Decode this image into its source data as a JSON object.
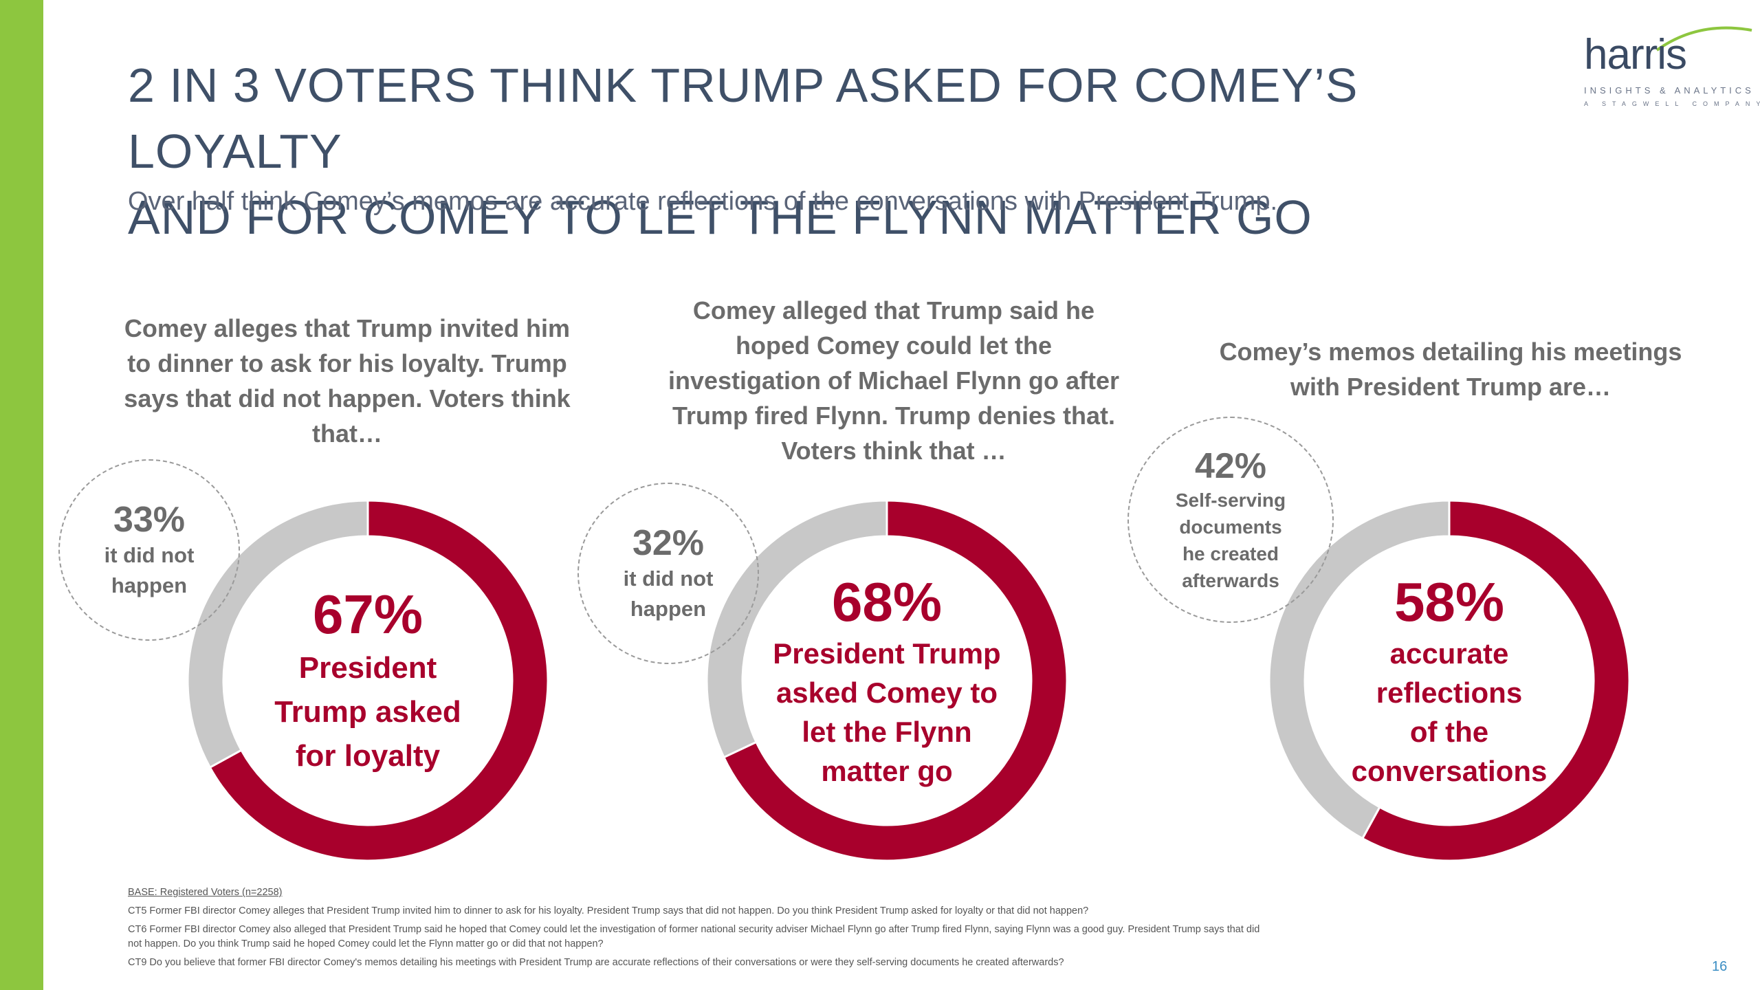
{
  "title_line1": "2 IN 3 VOTERS THINK TRUMP ASKED FOR COMEY’S LOYALTY",
  "title_line2": "AND FOR COMEY TO LET THE FLYNN MATTER GO",
  "subtitle": "Over half think Comey’s memos are accurate reflections of the conversations with President Trump.",
  "logo": {
    "word": "harris",
    "tagline": "INSIGHTS & ANALYTICS",
    "company": "A STAGWELL COMPANY"
  },
  "colors": {
    "accent": "#a8002c",
    "remainder": "#c8c8c8",
    "sidebar": "#8dc63f",
    "title": "#3f5068"
  },
  "chart_data": [
    {
      "type": "pie",
      "title": "Comey alleges that Trump invited him to dinner to ask for his loyalty. Trump says that did not happen. Voters think that…",
      "slices": [
        {
          "label": "President Trump asked for loyalty",
          "value": 67,
          "display": "67%"
        },
        {
          "label": "it did not happen",
          "value": 33,
          "display": "33%"
        }
      ]
    },
    {
      "type": "pie",
      "title": "Comey alleged that Trump said he hoped Comey could let the investigation of Michael Flynn go after Trump fired Flynn. Trump denies that. Voters think that …",
      "slices": [
        {
          "label": "President Trump asked Comey to let the Flynn matter go",
          "value": 68,
          "display": "68%"
        },
        {
          "label": "it did not happen",
          "value": 32,
          "display": "32%"
        }
      ]
    },
    {
      "type": "pie",
      "title": "Comey’s memos detailing his meetings with President Trump are…",
      "slices": [
        {
          "label": "accurate reflections of the conversations",
          "value": 58,
          "display": "58%"
        },
        {
          "label": "Self-serving documents he created afterwards",
          "value": 42,
          "display": "42%"
        }
      ]
    }
  ],
  "labels": {
    "c1_main": [
      "President",
      "Trump asked",
      "for loyalty"
    ],
    "c1_other": [
      "it did not",
      "happen"
    ],
    "c2_main": [
      "President Trump",
      "asked Comey to",
      "let the Flynn",
      "matter go"
    ],
    "c2_other": [
      "it did not",
      "happen"
    ],
    "c3_main": [
      "accurate",
      "reflections",
      "of the",
      "conversations"
    ],
    "c3_other": [
      "Self-serving",
      "documents",
      "he created",
      "afterwards"
    ]
  },
  "questions_wrapped": {
    "q1": [
      "Comey alleges that Trump invited him",
      "to dinner to ask for his loyalty. Trump",
      "says that did not happen. Voters think",
      "that…"
    ],
    "q2": [
      "Comey alleged that Trump said he",
      "hoped Comey could let the",
      "investigation of Michael Flynn go after",
      "Trump fired Flynn. Trump denies that.",
      "Voters think that …"
    ],
    "q3": [
      "Comey’s memos detailing his meetings",
      "with President Trump are…"
    ]
  },
  "footnotes": {
    "base": "BASE: Registered Voters (n=2258)",
    "ct5": "CT5 Former FBI director Comey alleges that President Trump invited him to dinner to ask for his loyalty. President Trump says that did not happen. Do you think President Trump asked for loyalty or that did not happen?",
    "ct6_line1": "CT6 Former FBI director Comey also alleged that President Trump said he hoped that Comey could let the investigation of former national security adviser Michael Flynn go after Trump fired Flynn, saying Flynn was a good guy. President Trump says that did",
    "ct6_line2": "not happen. Do you think Trump said he hoped Comey could let the Flynn matter go or did that not happen?",
    "ct9": "CT9 Do you believe that former FBI director Comey's memos detailing his meetings with President Trump are accurate reflections of their conversations or were they self-serving documents he created afterwards?"
  },
  "page_number": "16"
}
